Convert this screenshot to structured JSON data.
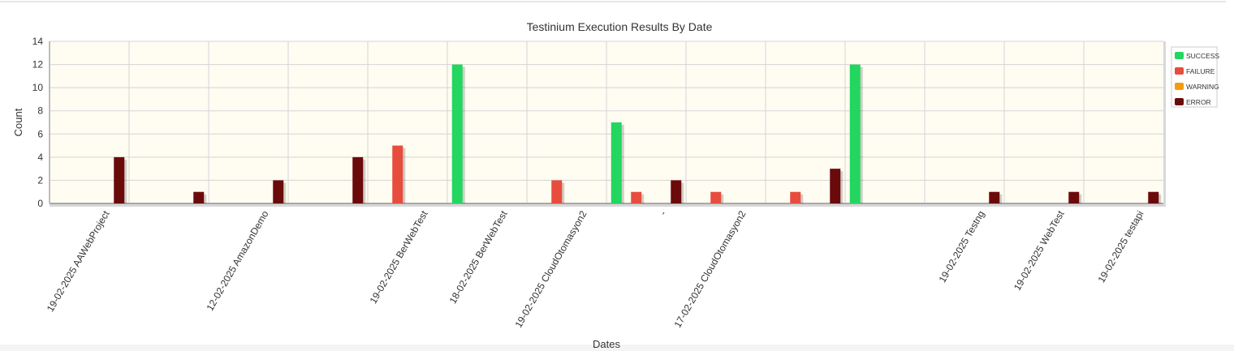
{
  "chart_data": {
    "type": "bar",
    "title": "Testinium Execution Results By Date",
    "xlabel": "Dates",
    "ylabel": "Count",
    "ylim": [
      0,
      14
    ],
    "yticks": [
      0,
      2,
      4,
      6,
      8,
      10,
      12,
      14
    ],
    "grid": true,
    "legend_position": "right",
    "categories": [
      "19-02-2025 AAWebProject",
      "",
      "12-02-2025 AmazonDemo",
      "",
      "19-02-2025 BerWebTest",
      "18-02-2025 BerWebTest",
      "19-02-2025 CloudOtomasyon2",
      "-",
      "17-02-2025 CloudOtomasyon2",
      "",
      "",
      "19-02-2025 Testng",
      "19-02-2025 WebTest",
      "19-02-2025 testapi"
    ],
    "series": [
      {
        "name": "SUCCESS",
        "color": "#22d660",
        "values": [
          0,
          0,
          0,
          0,
          0,
          12,
          0,
          7,
          0,
          0,
          12,
          0,
          0,
          0
        ]
      },
      {
        "name": "FAILURE",
        "color": "#e74c3c",
        "values": [
          0,
          0,
          0,
          0,
          5,
          0,
          2,
          1,
          1,
          1,
          0,
          0,
          0,
          0
        ]
      },
      {
        "name": "WARNING",
        "color": "#f39c12",
        "values": [
          0,
          0,
          0,
          0,
          0,
          0,
          0,
          0,
          0,
          0,
          0,
          0,
          0,
          0
        ]
      },
      {
        "name": "ERROR",
        "color": "#6b0a0a",
        "values": [
          4,
          1,
          2,
          4,
          0,
          0,
          0,
          2,
          0,
          3,
          0,
          1,
          1,
          1
        ]
      }
    ]
  }
}
